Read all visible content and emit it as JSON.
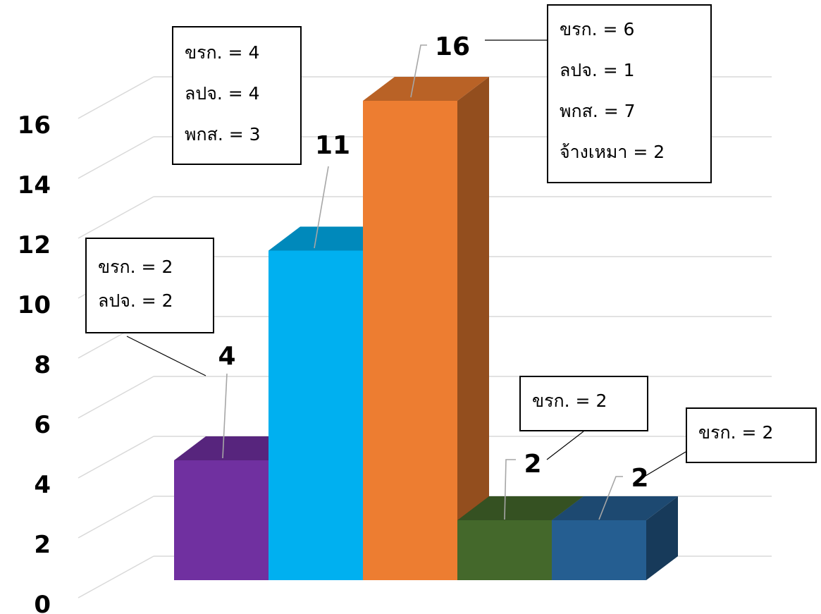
{
  "chart_data": {
    "type": "bar",
    "style": "3d-column",
    "ylim": [
      0,
      16
    ],
    "yticks": [
      0,
      2,
      4,
      6,
      8,
      10,
      12,
      14,
      16
    ],
    "grid": true,
    "legend": "none",
    "bars": [
      {
        "value": 4,
        "label": "4",
        "color": "#7030A0",
        "annotation": [
          "ขรก. = 2",
          "ลปจ. = 2"
        ]
      },
      {
        "value": 11,
        "label": "11",
        "color": "#00B0F0",
        "annotation": [
          "ขรก. = 4",
          "ลปจ. = 4",
          "พกส. = 3"
        ]
      },
      {
        "value": 16,
        "label": "16",
        "color": "#ED7D31",
        "annotation": [
          "ขรก. = 6",
          "ลปจ. = 1",
          "พกส. = 7",
          "จ้างเหมา = 2"
        ]
      },
      {
        "value": 2,
        "label": "2",
        "color": "#44682B",
        "annotation": [
          "ขรก. = 2"
        ]
      },
      {
        "value": 2,
        "label": "2",
        "color": "#255E91",
        "annotation": [
          "ขรก. = 2"
        ]
      }
    ]
  }
}
